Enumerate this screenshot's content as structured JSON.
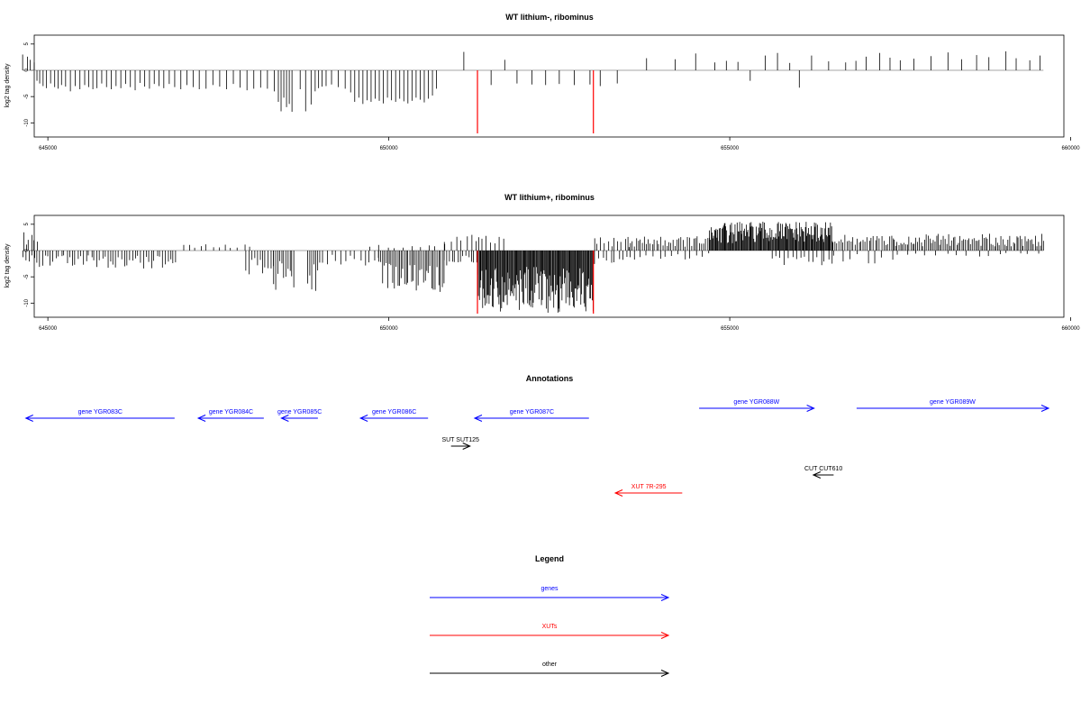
{
  "chart_data": [
    {
      "type": "bar",
      "title": "WT lithium-, ribominus",
      "xlabel": "",
      "ylabel": "log2 tag density",
      "xlim": [
        644800,
        659900
      ],
      "ylim": [
        -12,
        6
      ],
      "x_ticks": [
        645000,
        650000,
        655000,
        660000
      ],
      "x_tick_labels": [
        "645000",
        "650000",
        "655000",
        "660000"
      ],
      "y_ticks": [
        5,
        0,
        -5,
        -10
      ],
      "y_tick_labels": [
        "5",
        "0",
        "-5",
        "-10"
      ],
      "bar_color": "#000000",
      "marker_color": "#ff0000",
      "markers": [
        {
          "x": 651300,
          "y": -12
        },
        {
          "x": 653000,
          "y": -12
        }
      ],
      "x": [
        644630,
        644700,
        644740,
        644800,
        644840,
        644880,
        644930,
        644980,
        645040,
        645100,
        645150,
        645200,
        645260,
        645330,
        645400,
        645470,
        645540,
        645600,
        645660,
        645720,
        645790,
        645860,
        645930,
        646000,
        646070,
        646140,
        646210,
        646280,
        646350,
        646420,
        646490,
        646560,
        646630,
        646700,
        646780,
        646860,
        646950,
        647040,
        647130,
        647220,
        647320,
        647420,
        647520,
        647620,
        647720,
        647820,
        647920,
        648020,
        648120,
        648220,
        648320,
        648380,
        648420,
        648460,
        648500,
        648540,
        648580,
        648700,
        648780,
        648860,
        648920,
        648970,
        649020,
        649080,
        649160,
        649260,
        649360,
        649440,
        649500,
        649560,
        649620,
        649680,
        649740,
        649800,
        649860,
        649920,
        649980,
        650040,
        650100,
        650160,
        650220,
        650280,
        650340,
        650400,
        650460,
        650520,
        650580,
        650640,
        650700,
        651100,
        651300,
        651500,
        651700,
        651880,
        652100,
        652300,
        652500,
        652720,
        652950,
        653100,
        653350,
        653780,
        654200,
        654500,
        654780,
        654950,
        655120,
        655300,
        655520,
        655700,
        655880,
        656020,
        656200,
        656450,
        656700,
        656850,
        657000,
        657200,
        657350,
        657500,
        657700,
        657950,
        658200,
        658400,
        658620,
        658800,
        659050,
        659200,
        659400,
        659550
      ],
      "values": [
        3,
        2.6,
        2,
        1.5,
        -2,
        -2.5,
        -3,
        -3.4,
        -2.5,
        -3.2,
        -3.5,
        -2.8,
        -3.1,
        -4,
        -3,
        -3.6,
        -2.8,
        -3.2,
        -3.6,
        -3.4,
        -2.5,
        -3.2,
        -3.6,
        -3,
        -3.4,
        -2.6,
        -3.2,
        -3.8,
        -2.4,
        -3.1,
        -3.5,
        -2.6,
        -3,
        -3.4,
        -2.6,
        -3.2,
        -3.6,
        -2.8,
        -3.2,
        -3.6,
        -3.5,
        -2.8,
        -3.1,
        -3.6,
        -2.6,
        -3.3,
        -3.8,
        -3.5,
        -3.3,
        -3.5,
        -4,
        -6,
        -7.8,
        -5.2,
        -7,
        -6.4,
        -7.9,
        -3.6,
        -7.8,
        -6.5,
        -4,
        -3.4,
        -3.1,
        -3,
        -2.7,
        -3.2,
        -3.5,
        -4.2,
        -6,
        -5.2,
        -6.4,
        -5.7,
        -6,
        -5.4,
        -5.8,
        -6.3,
        -5.2,
        -5.7,
        -6,
        -5.4,
        -5.9,
        -6.3,
        -5.8,
        -5.2,
        -5.6,
        -6.1,
        -5.4,
        -4.8,
        -3.5,
        3.5,
        -2.5,
        -2.8,
        2,
        -2.5,
        -2.7,
        -2.8,
        -2.6,
        -2.8,
        -2.7,
        -3,
        -2.5,
        2.3,
        2.1,
        3.2,
        1.5,
        1.8,
        1.6,
        -2,
        2.8,
        3.3,
        1.4,
        -3.3,
        2.8,
        1.7,
        1.5,
        1.8,
        2.6,
        3.3,
        2.4,
        1.9,
        2.2,
        2.7,
        3.4,
        2.1,
        2.9,
        2.5,
        3.6,
        2.3,
        1.9,
        2.8
      ]
    },
    {
      "type": "bar",
      "title": "WT lithium+, ribominus",
      "xlabel": "",
      "ylabel": "log2 tag density",
      "xlim": [
        644800,
        659900
      ],
      "ylim": [
        -12,
        6
      ],
      "x_ticks": [
        645000,
        650000,
        655000,
        660000
      ],
      "x_tick_labels": [
        "645000",
        "650000",
        "655000",
        "660000"
      ],
      "y_ticks": [
        5,
        0,
        -5,
        -10
      ],
      "y_tick_labels": [
        "5",
        "0",
        "-5",
        "-10"
      ],
      "bar_color": "#000000",
      "marker_color": "#ff0000",
      "markers": [
        {
          "x": 651300,
          "y": -12
        },
        {
          "x": 653000,
          "y": -12
        }
      ],
      "segments": [
        {
          "x0": 644630,
          "x1": 644850,
          "step": 40,
          "amp": 3.5,
          "sign": 1
        },
        {
          "x0": 644630,
          "x1": 646900,
          "step": 40,
          "amp": 3.5,
          "sign": -1
        },
        {
          "x0": 646950,
          "x1": 648000,
          "step": 90,
          "amp": 1.2,
          "sign": 1
        },
        {
          "x0": 647900,
          "x1": 648300,
          "step": 40,
          "amp": 5,
          "sign": -1
        },
        {
          "x0": 648300,
          "x1": 648600,
          "step": 30,
          "amp": 8,
          "sign": -1
        },
        {
          "x0": 648800,
          "x1": 649000,
          "step": 30,
          "amp": 8,
          "sign": -1
        },
        {
          "x0": 649000,
          "x1": 649850,
          "step": 70,
          "amp": 3,
          "sign": -1
        },
        {
          "x0": 649850,
          "x1": 650800,
          "step": 25,
          "amp": 8,
          "sign": -1
        },
        {
          "x0": 649700,
          "x1": 650800,
          "step": 120,
          "amp": 1.8,
          "sign": 1
        },
        {
          "x0": 650800,
          "x1": 651300,
          "step": 40,
          "amp": 3,
          "sign": -1
        },
        {
          "x0": 650800,
          "x1": 651300,
          "step": 80,
          "amp": 3,
          "sign": 1
        },
        {
          "x0": 651300,
          "x1": 653000,
          "step": 12,
          "amp": 12,
          "sign": -1
        },
        {
          "x0": 651300,
          "x1": 651700,
          "step": 60,
          "amp": 3,
          "sign": 1
        },
        {
          "x0": 653000,
          "x1": 653500,
          "step": 50,
          "amp": 2.5,
          "sign": 1
        },
        {
          "x0": 653000,
          "x1": 653500,
          "step": 60,
          "amp": 3,
          "sign": -1
        },
        {
          "x0": 653500,
          "x1": 654700,
          "step": 30,
          "amp": 2.8,
          "sign": 1
        },
        {
          "x0": 653500,
          "x1": 654700,
          "step": 90,
          "amp": 1.8,
          "sign": -1
        },
        {
          "x0": 654700,
          "x1": 656500,
          "step": 12,
          "amp": 5.5,
          "sign": 1
        },
        {
          "x0": 655600,
          "x1": 656500,
          "step": 60,
          "amp": 2.8,
          "sign": -1
        },
        {
          "x0": 656500,
          "x1": 657400,
          "step": 30,
          "amp": 3,
          "sign": 1
        },
        {
          "x0": 656500,
          "x1": 657400,
          "step": 120,
          "amp": 2.5,
          "sign": -1
        },
        {
          "x0": 657400,
          "x1": 659600,
          "step": 25,
          "amp": 3.2,
          "sign": 1
        },
        {
          "x0": 657400,
          "x1": 659600,
          "step": 150,
          "amp": 1.2,
          "sign": -1
        }
      ]
    }
  ],
  "annotations": {
    "title": "Annotations",
    "xlim": [
      644800,
      659900
    ],
    "genes": [
      {
        "label": "gene YGR083C",
        "x_start": 646810,
        "x_end": 644610,
        "strand": "-",
        "row": 1
      },
      {
        "label": "gene YGR084C",
        "x_start": 648130,
        "x_end": 647160,
        "strand": "-",
        "row": 1
      },
      {
        "label": "gene YGR085C",
        "x_start": 648930,
        "x_end": 648390,
        "strand": "-",
        "row": 1
      },
      {
        "label": "gene YGR086C",
        "x_start": 650560,
        "x_end": 649560,
        "strand": "-",
        "row": 1
      },
      {
        "label": "gene YGR087C",
        "x_start": 652940,
        "x_end": 651250,
        "strand": "-",
        "row": 1
      },
      {
        "label": "gene YGR088W",
        "x_start": 654570,
        "x_end": 656270,
        "strand": "+",
        "row": 0
      },
      {
        "label": "gene YGR089W",
        "x_start": 656900,
        "x_end": 659740,
        "strand": "+",
        "row": 0
      }
    ],
    "other": [
      {
        "label": "SUT SUT125",
        "x_start": 650900,
        "x_end": 651180,
        "strand": "+",
        "row": 2
      },
      {
        "label": "CUT CUT610",
        "x_start": 656560,
        "x_end": 656260,
        "strand": "-",
        "row": 3
      }
    ],
    "xuts": [
      {
        "label": "XUT 7R-295",
        "x_start": 654320,
        "x_end": 653330,
        "strand": "-",
        "row": 4
      }
    ]
  },
  "legend": {
    "title": "Legend",
    "items": [
      {
        "label": "genes",
        "color": "#0000ff"
      },
      {
        "label": "XUTs",
        "color": "#ff0000"
      },
      {
        "label": "other",
        "color": "#000000"
      }
    ]
  },
  "colors": {
    "genes": "#0000ff",
    "xuts": "#ff0000",
    "other": "#000000",
    "zero_line": "#888888"
  }
}
